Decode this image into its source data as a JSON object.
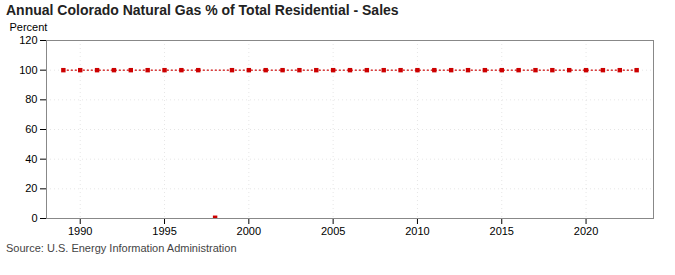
{
  "chart_data": {
    "type": "line",
    "title": "Annual Colorado Natural Gas % of Total Residential - Sales",
    "ylabel": "Percent",
    "caption": "Source: U.S. Energy Information Administration",
    "series": [
      {
        "type": "line",
        "color": "#cc0000",
        "marker": "square",
        "line_style": "dotted",
        "x": [
          1989,
          1990,
          1991,
          1992,
          1993,
          1994,
          1995,
          1996,
          1997,
          1999,
          2000,
          2001,
          2002,
          2003,
          2004,
          2005,
          2006,
          2007,
          2008,
          2009,
          2010,
          2011,
          2012,
          2013,
          2014,
          2015,
          2016,
          2017,
          2018,
          2019,
          2020,
          2021,
          2022,
          2023
        ],
        "values": [
          100,
          100,
          100,
          100,
          100,
          100,
          100,
          100,
          100,
          100,
          100,
          100,
          100,
          100,
          100,
          100,
          100,
          100,
          100,
          100,
          100,
          100,
          100,
          100,
          100,
          100,
          100,
          100,
          100,
          100,
          100,
          100,
          100,
          100
        ]
      },
      {
        "type": "scatter",
        "color": "#cc0000",
        "marker": "square",
        "x": [
          1998
        ],
        "values": [
          0.5
        ]
      }
    ],
    "xlim": [
      1988.0,
      2024.0
    ],
    "xticks": [
      1990,
      1995,
      2000,
      2005,
      2010,
      2015,
      2020
    ],
    "ylim": [
      0,
      120
    ],
    "yticks": [
      0,
      20,
      40,
      60,
      80,
      100,
      120
    ],
    "grid": true
  }
}
